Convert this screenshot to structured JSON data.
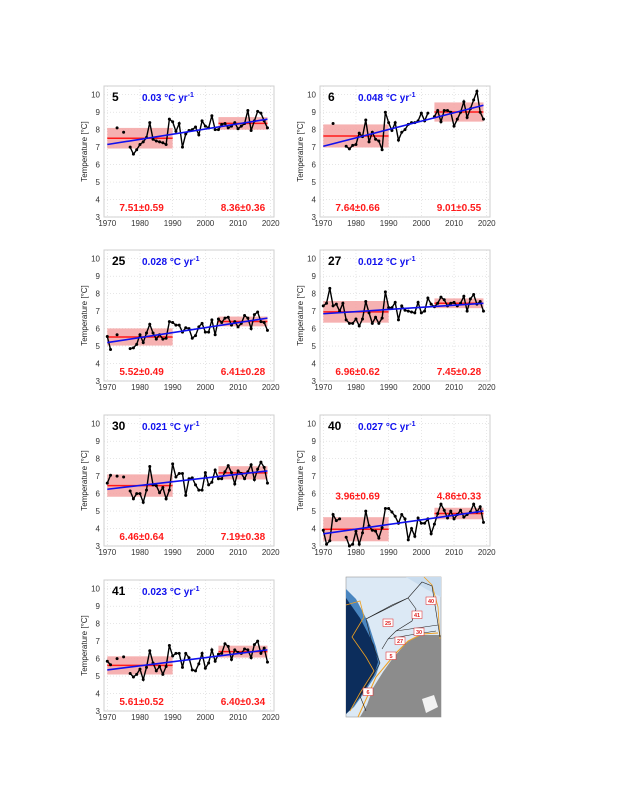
{
  "chart_data": {
    "type": "line",
    "ylabel": "Temperature [°C]",
    "unit_text": "°C yr",
    "unit_sup": "-1",
    "xlim": [
      1969,
      2021
    ],
    "ylim": [
      3,
      10.5
    ],
    "xticks": [
      1970,
      1980,
      1990,
      2000,
      2010,
      2020
    ],
    "yticks": [
      3,
      4,
      5,
      6,
      7,
      8,
      9,
      10
    ],
    "grid": true,
    "start_year": 1970,
    "colors": {
      "series": "#000000",
      "trend": "#1010ee",
      "mean": "#ff1a1a",
      "band": "#f4a3a3"
    },
    "panels": [
      {
        "label": "5",
        "trend_value": "0.03",
        "trend_line": [
          [
            1970,
            7.15
          ],
          [
            2019,
            8.6
          ]
        ],
        "early": {
          "start": 1970,
          "end": 1990,
          "mean": 7.51,
          "std": 0.59,
          "text": "7.51±0.59"
        },
        "late": {
          "start": 2004,
          "end": 2019,
          "mean": 8.36,
          "std": 0.36,
          "text": "8.36±0.36"
        },
        "values": [
          null,
          null,
          null,
          8.1,
          null,
          7.85,
          null,
          7.0,
          6.6,
          6.85,
          7.15,
          7.3,
          7.55,
          8.4,
          7.45,
          7.35,
          7.3,
          7.25,
          7.15,
          8.6,
          8.45,
          7.9,
          8.35,
          7.0,
          7.75,
          7.95,
          8.0,
          8.15,
          7.7,
          8.5,
          8.2,
          8.1,
          8.8,
          8.0,
          8.0,
          8.3,
          8.35,
          8.1,
          8.2,
          8.4,
          8.05,
          8.2,
          8.35,
          9.1,
          7.95,
          8.5,
          9.05,
          8.95,
          8.5,
          8.1
        ]
      },
      {
        "label": "6",
        "trend_value": "0.048",
        "trend_line": [
          [
            1970,
            7.05
          ],
          [
            2019,
            9.4
          ]
        ],
        "early": {
          "start": 1970,
          "end": 1990,
          "mean": 7.64,
          "std": 0.66,
          "text": "7.64±0.66"
        },
        "late": {
          "start": 2004,
          "end": 2019,
          "mean": 9.01,
          "std": 0.55,
          "text": "9.01±0.55"
        },
        "values": [
          null,
          null,
          null,
          8.35,
          null,
          null,
          null,
          7.05,
          6.9,
          7.1,
          7.15,
          7.8,
          7.6,
          8.55,
          7.3,
          7.85,
          7.45,
          7.35,
          6.85,
          9.0,
          8.4,
          7.95,
          8.4,
          7.4,
          7.85,
          8.0,
          8.3,
          8.4,
          8.4,
          8.5,
          8.95,
          8.5,
          8.95,
          null,
          8.75,
          9.1,
          8.45,
          9.1,
          9.1,
          9.0,
          8.2,
          8.6,
          9.0,
          9.6,
          8.7,
          9.2,
          9.7,
          10.2,
          9.0,
          8.6
        ]
      },
      {
        "label": "25",
        "trend_value": "0.028",
        "trend_line": [
          [
            1970,
            5.2
          ],
          [
            2019,
            6.6
          ]
        ],
        "early": {
          "start": 1970,
          "end": 1990,
          "mean": 5.52,
          "std": 0.49,
          "text": "5.52±0.49"
        },
        "late": {
          "start": 2004,
          "end": 2019,
          "mean": 6.41,
          "std": 0.28,
          "text": "6.41±0.28"
        },
        "values": [
          5.55,
          4.8,
          null,
          5.65,
          null,
          null,
          null,
          4.85,
          4.9,
          5.1,
          5.65,
          5.2,
          5.75,
          6.25,
          5.75,
          5.4,
          5.65,
          5.4,
          5.45,
          6.4,
          6.35,
          6.2,
          6.2,
          5.8,
          6.05,
          6.0,
          5.45,
          5.6,
          6.1,
          6.3,
          5.8,
          5.8,
          6.5,
          5.65,
          6.55,
          6.35,
          6.6,
          6.65,
          6.2,
          6.4,
          6.1,
          6.3,
          6.75,
          6.6,
          6.0,
          6.8,
          6.95,
          6.4,
          6.35,
          5.9
        ]
      },
      {
        "label": "27",
        "trend_value": "0.012",
        "trend_line": [
          [
            1970,
            6.85
          ],
          [
            2019,
            7.45
          ]
        ],
        "early": {
          "start": 1970,
          "end": 1990,
          "mean": 6.96,
          "std": 0.62,
          "text": "6.96±0.62"
        },
        "late": {
          "start": 2004,
          "end": 2019,
          "mean": 7.45,
          "std": 0.28,
          "text": "7.45±0.28"
        },
        "values": [
          7.3,
          7.45,
          8.3,
          7.3,
          7.4,
          7.0,
          7.45,
          6.5,
          6.3,
          6.3,
          6.55,
          6.15,
          6.55,
          7.55,
          6.9,
          6.3,
          6.65,
          6.3,
          6.6,
          8.1,
          7.2,
          7.2,
          7.5,
          6.5,
          7.3,
          7.05,
          7.0,
          6.95,
          6.9,
          7.5,
          6.9,
          7.0,
          7.75,
          7.4,
          7.25,
          7.45,
          7.8,
          7.65,
          7.3,
          7.45,
          7.5,
          7.3,
          7.45,
          7.85,
          7.0,
          7.7,
          7.95,
          7.4,
          7.55,
          7.0
        ]
      },
      {
        "label": "30",
        "trend_value": "0.021",
        "trend_line": [
          [
            1970,
            6.25
          ],
          [
            2019,
            7.3
          ]
        ],
        "early": {
          "start": 1970,
          "end": 1990,
          "mean": 6.46,
          "std": 0.64,
          "text": "6.46±0.64"
        },
        "late": {
          "start": 2004,
          "end": 2019,
          "mean": 7.19,
          "std": 0.38,
          "text": "7.19±0.38"
        },
        "values": [
          6.6,
          7.05,
          null,
          7.0,
          null,
          6.95,
          null,
          6.15,
          5.7,
          6.0,
          6.0,
          5.5,
          6.2,
          7.55,
          6.5,
          6.45,
          6.05,
          6.35,
          5.7,
          6.2,
          7.7,
          6.95,
          7.15,
          7.15,
          5.9,
          6.85,
          6.9,
          6.5,
          6.2,
          6.2,
          7.2,
          6.5,
          6.65,
          7.35,
          6.85,
          6.85,
          7.25,
          7.6,
          7.2,
          6.55,
          7.3,
          7.15,
          6.85,
          7.25,
          7.65,
          6.8,
          7.4,
          7.8,
          7.5,
          6.6
        ]
      },
      {
        "label": "40",
        "trend_value": "0.027",
        "trend_line": [
          [
            1970,
            3.7
          ],
          [
            2019,
            5.0
          ]
        ],
        "early": {
          "start": 1970,
          "end": 1990,
          "mean": 3.96,
          "std": 0.69,
          "text": "3.96±0.69"
        },
        "late": {
          "start": 2004,
          "end": 2019,
          "mean": 4.86,
          "std": 0.33,
          "text": "4.86±0.33"
        },
        "values": [
          3.9,
          3.1,
          3.3,
          4.8,
          4.45,
          4.55,
          null,
          3.5,
          3.0,
          3.1,
          3.85,
          3.1,
          3.75,
          5.0,
          4.15,
          3.9,
          3.85,
          3.45,
          4.05,
          5.15,
          5.15,
          4.95,
          4.7,
          4.3,
          4.8,
          4.55,
          3.35,
          4.0,
          3.55,
          4.6,
          4.3,
          4.3,
          4.55,
          3.7,
          4.25,
          4.85,
          5.4,
          5.05,
          4.6,
          5.0,
          4.55,
          4.8,
          5.05,
          4.65,
          4.8,
          4.95,
          5.4,
          4.95,
          5.25,
          4.35
        ]
      },
      {
        "label": "41",
        "trend_value": "0.023",
        "trend_line": [
          [
            1970,
            5.35
          ],
          [
            2019,
            6.5
          ]
        ],
        "early": {
          "start": 1970,
          "end": 1990,
          "mean": 5.61,
          "std": 0.52,
          "text": "5.61±0.52"
        },
        "late": {
          "start": 2004,
          "end": 2019,
          "mean": 6.4,
          "std": 0.34,
          "text": "6.40±0.34"
        },
        "values": [
          5.85,
          5.65,
          null,
          6.0,
          null,
          6.1,
          null,
          5.15,
          4.95,
          5.1,
          5.4,
          4.8,
          5.5,
          6.45,
          5.75,
          5.3,
          5.55,
          5.1,
          5.55,
          6.75,
          6.15,
          6.3,
          6.3,
          5.5,
          6.3,
          6.05,
          5.35,
          5.3,
          5.7,
          6.3,
          5.45,
          5.75,
          6.5,
          5.85,
          6.25,
          6.3,
          6.85,
          6.7,
          5.95,
          6.5,
          6.35,
          6.3,
          6.55,
          6.5,
          6.05,
          6.8,
          7.0,
          6.3,
          6.6,
          5.8
        ]
      }
    ]
  },
  "map": {
    "region_labels": [
      "40",
      "41",
      "25",
      "30",
      "27",
      "5",
      "6"
    ],
    "colors": {
      "deep": "#0c2d5c",
      "shelf": "#dce9f5",
      "land": "#8c8c8c",
      "contour": "#f0a020",
      "outline": "#222222"
    }
  }
}
